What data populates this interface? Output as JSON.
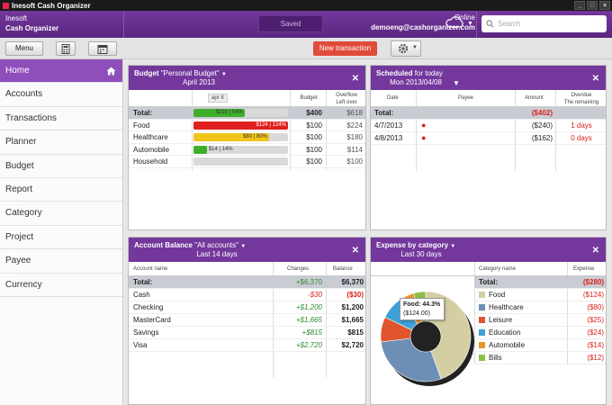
{
  "window": {
    "title": "Inesoft Cash Organizer"
  },
  "header": {
    "brand_line1": "Inesoft",
    "brand_line2": "Cash Organizer",
    "saved_label": "Saved",
    "status": "Online",
    "email": "demoeng@cashorganizer.com",
    "search_placeholder": "Search"
  },
  "toolbar": {
    "menu_label": "Menu",
    "new_transaction_label": "New transaction"
  },
  "sidebar": {
    "items": [
      "Home",
      "Accounts",
      "Transactions",
      "Planner",
      "Budget",
      "Report",
      "Category",
      "Project",
      "Payee",
      "Currency"
    ],
    "active": "Home"
  },
  "budget": {
    "title": "Budget",
    "subtitle": "\"Personal Budget\"",
    "period": "April 2013",
    "marker": "apr 8",
    "col_budget": "Budget",
    "col_overflow": "Overflow",
    "col_leftover": "Left over",
    "rows": [
      {
        "name": "Total:",
        "bar_label": "$218 | 54%",
        "pct": 0.54,
        "color": "#3fae2a",
        "budget": "$400",
        "left": "$618"
      },
      {
        "name": "Food",
        "bar_label": "$124 | 124%",
        "pct": 1.0,
        "color": "#e0201c",
        "budget": "$100",
        "left": "$224"
      },
      {
        "name": "Healthcare",
        "bar_label": "$80 | 80%",
        "pct": 0.8,
        "color": "#f0c419",
        "budget": "$100",
        "left": "$180"
      },
      {
        "name": "Automobile",
        "bar_label": "$14 | 14%",
        "pct": 0.14,
        "color": "#3fae2a",
        "budget": "$100",
        "left": "$114"
      },
      {
        "name": "Household",
        "bar_label": "",
        "pct": 0,
        "color": "#3fae2a",
        "budget": "$100",
        "left": "$100"
      }
    ]
  },
  "scheduled": {
    "title": "Scheduled",
    "title_suffix": "for today",
    "period": "Mon 2013/04/08",
    "col_date": "Date",
    "col_payee": "Payee",
    "col_amount": "Amount",
    "col_overdue": "Overdue",
    "col_remaining": "The remaining",
    "total_label": "Total:",
    "total_amount": "($402)",
    "rows": [
      {
        "date": "4/7/2013",
        "amount": "($240)",
        "overdue": "1 days"
      },
      {
        "date": "4/8/2013",
        "amount": "($162)",
        "overdue": "0 days"
      }
    ]
  },
  "account_balance": {
    "title": "Account Balance",
    "subtitle": "\"All accounts\"",
    "period": "Last 14 days",
    "col_name": "Account name",
    "col_changes": "Changes",
    "col_balance": "Balance",
    "total": {
      "name": "Total:",
      "changes": "+$6,370",
      "balance": "$6,370"
    },
    "rows": [
      {
        "name": "Cash",
        "changes": "-$30",
        "balance": "($30)",
        "neg": true
      },
      {
        "name": "Checking",
        "changes": "+$1,200",
        "balance": "$1,200",
        "neg": false
      },
      {
        "name": "MasterCard",
        "changes": "+$1,665",
        "balance": "$1,665",
        "neg": false
      },
      {
        "name": "Savings",
        "changes": "+$815",
        "balance": "$815",
        "neg": false
      },
      {
        "name": "Visa",
        "changes": "+$2,720",
        "balance": "$2,720",
        "neg": false
      }
    ]
  },
  "expense": {
    "title": "Expense by category",
    "period": "Last 30 days",
    "col_category": "Category name",
    "col_expense": "Expense",
    "total": {
      "name": "Total:",
      "value": "($280)"
    },
    "rows": [
      {
        "name": "Food",
        "value": "($124)",
        "amount": 124,
        "color": "#d4cfa3"
      },
      {
        "name": "Healthcare",
        "value": "($80)",
        "amount": 80,
        "color": "#6d8fb5"
      },
      {
        "name": "Leisure",
        "value": "($25)",
        "amount": 25,
        "color": "#e0552d"
      },
      {
        "name": "Education",
        "value": "($24)",
        "amount": 24,
        "color": "#3da0d8"
      },
      {
        "name": "Automobile",
        "value": "($14)",
        "amount": 14,
        "color": "#e8952a"
      },
      {
        "name": "Bills",
        "value": "($12)",
        "amount": 12,
        "color": "#8cbf45"
      }
    ],
    "tooltip_line1": "Food: 44.3%",
    "tooltip_line2": "($124.00)"
  }
}
